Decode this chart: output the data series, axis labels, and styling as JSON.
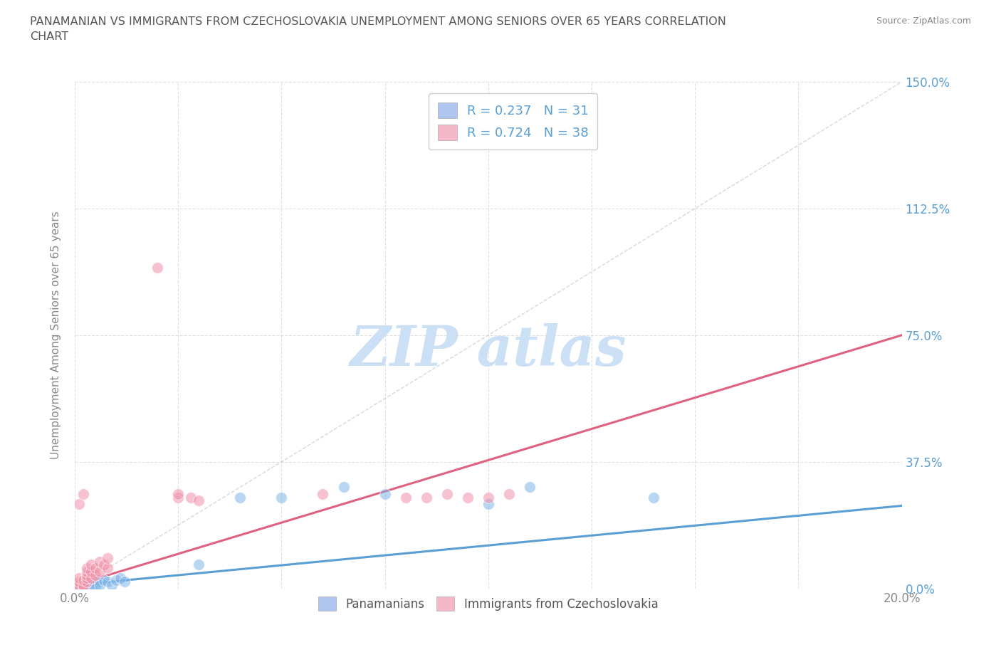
{
  "title": "PANAMANIAN VS IMMIGRANTS FROM CZECHOSLOVAKIA UNEMPLOYMENT AMONG SENIORS OVER 65 YEARS CORRELATION\nCHART",
  "source": "Source: ZipAtlas.com",
  "ylabel_label": "Unemployment Among Seniors over 65 years",
  "legend_entries": [
    {
      "label": "R = 0.237   N = 31",
      "color": "#aec6f0"
    },
    {
      "label": "R = 0.724   N = 38",
      "color": "#f4b8c8"
    }
  ],
  "bottom_legend": [
    "Panamanians",
    "Immigrants from Czechoslovakia"
  ],
  "bottom_legend_colors": [
    "#aec6f0",
    "#f4b8c8"
  ],
  "pan_scatter_x": [
    0.0,
    0.001,
    0.001,
    0.001,
    0.002,
    0.002,
    0.002,
    0.003,
    0.003,
    0.003,
    0.004,
    0.004,
    0.005,
    0.005,
    0.005,
    0.006,
    0.006,
    0.007,
    0.008,
    0.009,
    0.01,
    0.011,
    0.012,
    0.03,
    0.04,
    0.05,
    0.065,
    0.075,
    0.1,
    0.11,
    0.14
  ],
  "pan_scatter_y": [
    0.0,
    0.005,
    0.01,
    0.0,
    0.005,
    0.0,
    0.01,
    0.02,
    0.0,
    0.015,
    0.01,
    0.0,
    0.025,
    0.015,
    0.0,
    0.02,
    0.01,
    0.025,
    0.02,
    0.01,
    0.025,
    0.03,
    0.02,
    0.07,
    0.27,
    0.27,
    0.3,
    0.28,
    0.25,
    0.3,
    0.27
  ],
  "cze_scatter_x": [
    0.0,
    0.0,
    0.001,
    0.001,
    0.001,
    0.001,
    0.001,
    0.002,
    0.002,
    0.002,
    0.002,
    0.003,
    0.003,
    0.003,
    0.003,
    0.003,
    0.004,
    0.004,
    0.004,
    0.005,
    0.005,
    0.006,
    0.006,
    0.007,
    0.008,
    0.008,
    0.02,
    0.025,
    0.025,
    0.028,
    0.03,
    0.06,
    0.08,
    0.085,
    0.09,
    0.095,
    0.1,
    0.105
  ],
  "cze_scatter_y": [
    0.0,
    0.005,
    0.0,
    0.01,
    0.02,
    0.03,
    0.25,
    0.0,
    0.01,
    0.025,
    0.28,
    0.02,
    0.03,
    0.04,
    0.05,
    0.06,
    0.03,
    0.05,
    0.07,
    0.04,
    0.06,
    0.05,
    0.08,
    0.07,
    0.06,
    0.09,
    0.95,
    0.27,
    0.28,
    0.27,
    0.26,
    0.28,
    0.27,
    0.27,
    0.28,
    0.27,
    0.27,
    0.28
  ],
  "pan_line_x": [
    0.0,
    0.2
  ],
  "pan_line_y": [
    0.01,
    0.245
  ],
  "cze_line_x": [
    0.0,
    0.2
  ],
  "cze_line_y": [
    0.01,
    0.75
  ],
  "diag_line_x": [
    0.0,
    0.2
  ],
  "diag_line_y": [
    0.0,
    1.5
  ],
  "xlim": [
    0.0,
    0.2
  ],
  "ylim": [
    0.0,
    1.5
  ],
  "ytick_vals": [
    0.0,
    0.375,
    0.75,
    1.125,
    1.5
  ],
  "ytick_labels": [
    "0.0%",
    "37.5%",
    "75.0%",
    "112.5%",
    "150.0%"
  ],
  "xtick_vals": [
    0.0,
    0.025,
    0.05,
    0.075,
    0.1,
    0.125,
    0.15,
    0.175,
    0.2
  ],
  "xtick_edge_labels": [
    "0.0%",
    "20.0%"
  ],
  "pan_color": "#7eb3e8",
  "cze_color": "#f090a8",
  "pan_line_color": "#5a9fd4",
  "cze_line_color": "#e06080",
  "diag_line_color": "#c8c8c8",
  "background_color": "#ffffff",
  "grid_color": "#dddddd",
  "title_color": "#555555",
  "axis_label_color": "#888888",
  "tick_color": "#888888",
  "right_tick_color": "#5a9fd4",
  "watermark_color": "#cce0f5"
}
